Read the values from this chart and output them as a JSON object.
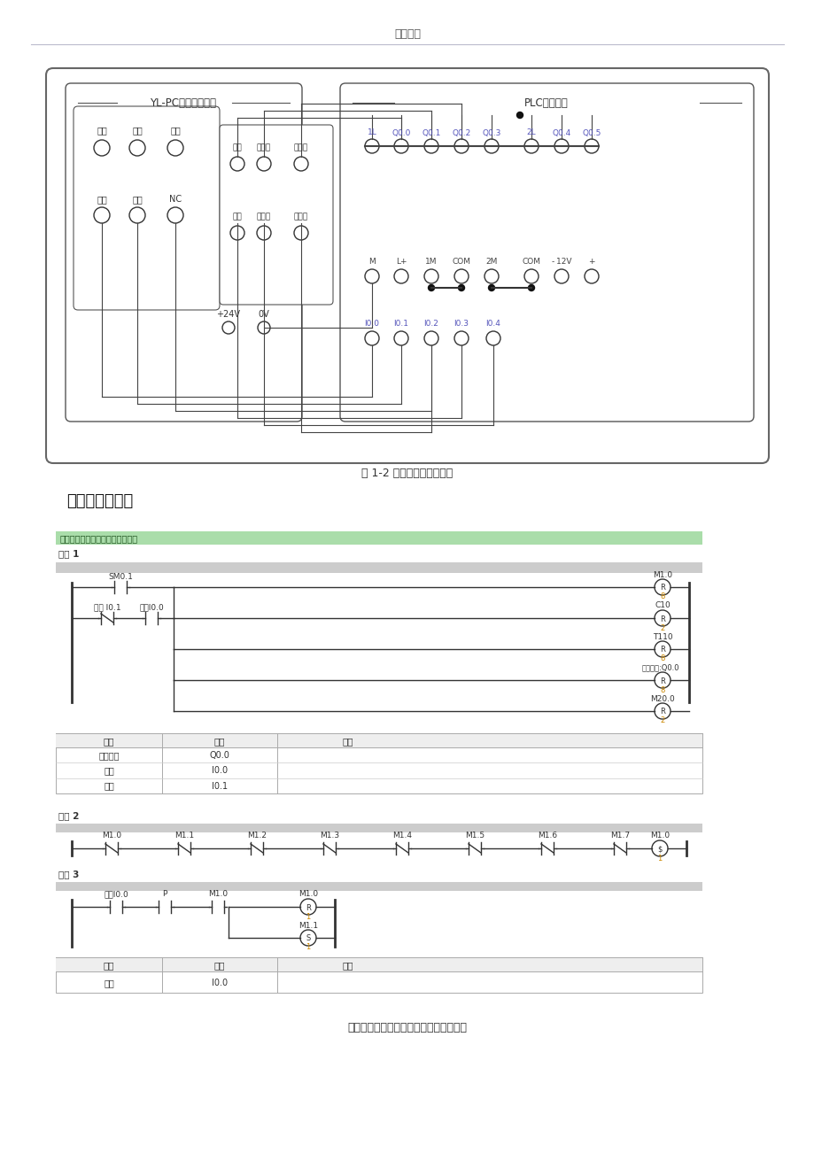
{
  "page_title": "精品文档",
  "fig1_caption": "图 1-2 全自动洗衣机接线图",
  "section_title": "七、梯形图程序",
  "ylpc_title": "YL-PC全自动洗衣机",
  "plc_title": "PLC主机面板",
  "bottom_text": "收集于网络，如有侵权请联系管理员删除",
  "bg_color": "#ffffff"
}
